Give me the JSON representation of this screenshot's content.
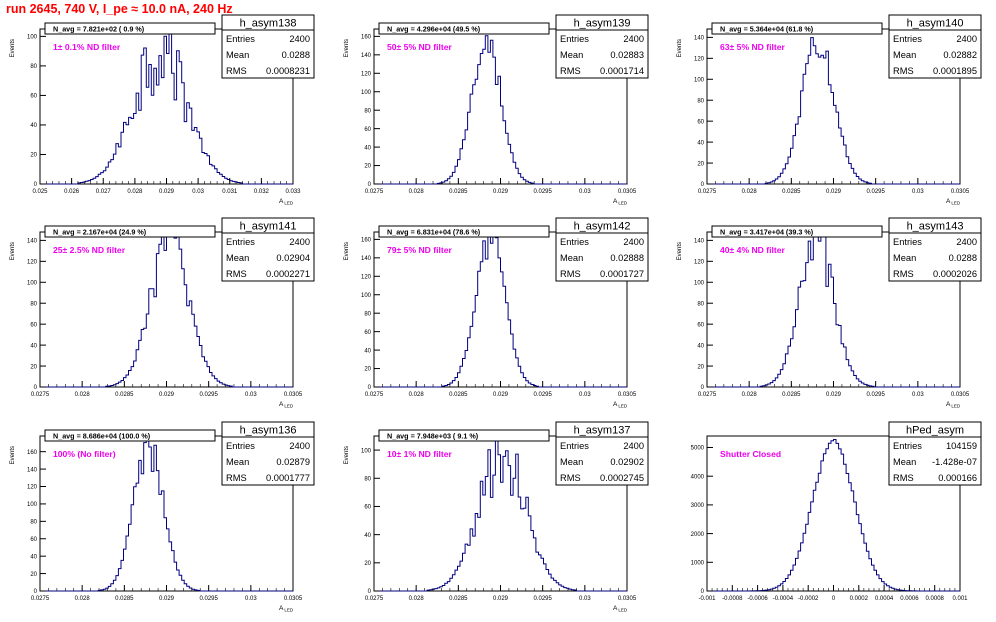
{
  "title": "run 2645,   740 V, I_pe ≈ 10.0 nA, 240 Hz",
  "colors": {
    "histogram": "#000080",
    "filter_label": "#ee00ee",
    "title": "#ff0000",
    "axis": "#000000"
  },
  "stats_labels": {
    "entries": "Entries",
    "mean": "Mean",
    "rms": "RMS"
  },
  "chart_data": [
    {
      "type": "histogram",
      "name": "h_asym138",
      "navg_label": "N_avg = 7.821e+02 ( 0.9 %)",
      "filter_label": "1± 0.1% ND filter",
      "stats": {
        "entries": "2400",
        "mean": "0.0288",
        "rms": "0.0008231"
      },
      "ylabel": "Events",
      "xlabel": "A",
      "xlabel_sub": "LED",
      "xlim": [
        0.025,
        0.033
      ],
      "ylim": [
        0,
        105
      ],
      "yticks": [
        0,
        20,
        40,
        60,
        80,
        100
      ],
      "xtick_labels": [
        "0.025",
        "0.026",
        "0.027",
        "0.028",
        "0.029",
        "0.03",
        "0.031",
        "0.032",
        "0.033"
      ],
      "mean": 0.0288,
      "rms": 0.0008231,
      "peak": 95,
      "jitter": 0.35
    },
    {
      "type": "histogram",
      "name": "h_asym139",
      "navg_label": "N_avg = 4.296e+04 (49.5 %)",
      "filter_label": "50± 5% ND filter",
      "stats": {
        "entries": "2400",
        "mean": "0.02883",
        "rms": "0.0001714"
      },
      "ylabel": "Events",
      "xlabel": "A",
      "xlabel_sub": "LED",
      "xlim": [
        0.0275,
        0.0305
      ],
      "ylim": [
        0,
        168
      ],
      "yticks": [
        0,
        20,
        40,
        60,
        80,
        100,
        120,
        140,
        160
      ],
      "xtick_labels": [
        "0.0275",
        "0.028",
        "0.0285",
        "0.029",
        "0.0295",
        "0.03",
        "0.0305"
      ],
      "mean": 0.02883,
      "rms": 0.0001714,
      "peak": 160,
      "jitter": 0.15
    },
    {
      "type": "histogram",
      "name": "h_asym140",
      "navg_label": "N_avg = 5.364e+04 (61.8 %)",
      "filter_label": "63± 5% ND filter",
      "stats": {
        "entries": "2400",
        "mean": "0.02882",
        "rms": "0.0001895"
      },
      "ylabel": "Events",
      "xlabel": "A",
      "xlabel_sub": "LED",
      "xlim": [
        0.0275,
        0.0305
      ],
      "ylim": [
        0,
        148
      ],
      "yticks": [
        0,
        20,
        40,
        60,
        80,
        100,
        120,
        140
      ],
      "xtick_labels": [
        "0.0275",
        "0.028",
        "0.0285",
        "0.029",
        "0.0295",
        "0.03",
        "0.0305"
      ],
      "mean": 0.02882,
      "rms": 0.0001895,
      "peak": 142,
      "jitter": 0.15
    },
    {
      "type": "histogram",
      "name": "h_asym141",
      "navg_label": "N_avg = 2.167e+04 (24.9 %)",
      "filter_label": "25± 2.5% ND filter",
      "stats": {
        "entries": "2400",
        "mean": "0.02904",
        "rms": "0.0002271"
      },
      "ylabel": "Events",
      "xlabel": "A",
      "xlabel_sub": "LED",
      "xlim": [
        0.0275,
        0.0305
      ],
      "ylim": [
        0,
        148
      ],
      "yticks": [
        0,
        20,
        40,
        60,
        80,
        100,
        120,
        140
      ],
      "xtick_labels": [
        "0.0275",
        "0.028",
        "0.0285",
        "0.029",
        "0.0295",
        "0.03",
        "0.0305"
      ],
      "mean": 0.02904,
      "rms": 0.0002271,
      "peak": 140,
      "jitter": 0.2
    },
    {
      "type": "histogram",
      "name": "h_asym142",
      "navg_label": "N_avg = 6.831e+04 (78.6 %)",
      "filter_label": "79± 5% ND filter",
      "stats": {
        "entries": "2400",
        "mean": "0.02888",
        "rms": "0.0001727"
      },
      "ylabel": "Events",
      "xlabel": "A",
      "xlabel_sub": "LED",
      "xlim": [
        0.0275,
        0.0305
      ],
      "ylim": [
        0,
        168
      ],
      "yticks": [
        0,
        20,
        40,
        60,
        80,
        100,
        120,
        140,
        160
      ],
      "xtick_labels": [
        "0.0275",
        "0.028",
        "0.0285",
        "0.029",
        "0.0295",
        "0.03",
        "0.0305"
      ],
      "mean": 0.02888,
      "rms": 0.0001727,
      "peak": 162,
      "jitter": 0.12
    },
    {
      "type": "histogram",
      "name": "h_asym143",
      "navg_label": "N_avg = 3.417e+04 (39.3 %)",
      "filter_label": "40± 4% ND filter",
      "stats": {
        "entries": "2400",
        "mean": "0.0288",
        "rms": "0.0002026"
      },
      "ylabel": "Events",
      "xlabel": "A",
      "xlabel_sub": "LED",
      "xlim": [
        0.0275,
        0.0305
      ],
      "ylim": [
        0,
        148
      ],
      "yticks": [
        0,
        20,
        40,
        60,
        80,
        100,
        120,
        140
      ],
      "xtick_labels": [
        "0.0275",
        "0.028",
        "0.0285",
        "0.029",
        "0.0295",
        "0.03",
        "0.0305"
      ],
      "mean": 0.0288,
      "rms": 0.0002026,
      "peak": 140,
      "jitter": 0.18
    },
    {
      "type": "histogram",
      "name": "h_asym136",
      "navg_label": "N_avg = 8.686e+04 (100.0 %)",
      "filter_label": "100% (No filter)",
      "stats": {
        "entries": "2400",
        "mean": "0.02879",
        "rms": "0.0001777"
      },
      "ylabel": "Events",
      "xlabel": "A",
      "xlabel_sub": "LED",
      "xlim": [
        0.0275,
        0.0305
      ],
      "ylim": [
        0,
        178
      ],
      "yticks": [
        0,
        20,
        40,
        60,
        80,
        100,
        120,
        140,
        160
      ],
      "xtick_labels": [
        "0.0275",
        "0.028",
        "0.0285",
        "0.029",
        "0.0295",
        "0.03",
        "0.0305"
      ],
      "mean": 0.02879,
      "rms": 0.0001777,
      "peak": 165,
      "jitter": 0.15
    },
    {
      "type": "histogram",
      "name": "h_asym137",
      "navg_label": "N_avg = 7.948e+03 ( 9.1 %)",
      "filter_label": "10± 1% ND filter",
      "stats": {
        "entries": "2400",
        "mean": "0.02902",
        "rms": "0.0002745"
      },
      "ylabel": "Events",
      "xlabel": "A",
      "xlabel_sub": "LED",
      "xlim": [
        0.0275,
        0.0305
      ],
      "ylim": [
        0,
        110
      ],
      "yticks": [
        0,
        20,
        40,
        60,
        80,
        100
      ],
      "xtick_labels": [
        "0.0275",
        "0.028",
        "0.0285",
        "0.029",
        "0.0295",
        "0.03",
        "0.0305"
      ],
      "mean": 0.02902,
      "rms": 0.0002745,
      "peak": 100,
      "jitter": 0.3
    },
    {
      "type": "histogram",
      "name": "hPed_asym",
      "navg_label": "",
      "filter_label": "Shutter Closed",
      "stats": {
        "entries": "104159",
        "mean": "-1.428e-07",
        "rms": "0.000166"
      },
      "ylabel": "",
      "xlabel": "",
      "xlabel_sub": "",
      "xlim": [
        -0.001,
        0.001
      ],
      "ylim": [
        0,
        5400
      ],
      "yticks": [
        0,
        1000,
        2000,
        3000,
        4000,
        5000
      ],
      "xtick_labels": [
        "-0.001",
        "-0.0008",
        "-0.0006",
        "-0.0004",
        "-0.0002",
        "0",
        "0.0002",
        "0.0004",
        "0.0006",
        "0.0008",
        "0.001"
      ],
      "mean": -1.428e-07,
      "rms": 0.000166,
      "peak": 5200,
      "jitter": 0.02
    }
  ]
}
